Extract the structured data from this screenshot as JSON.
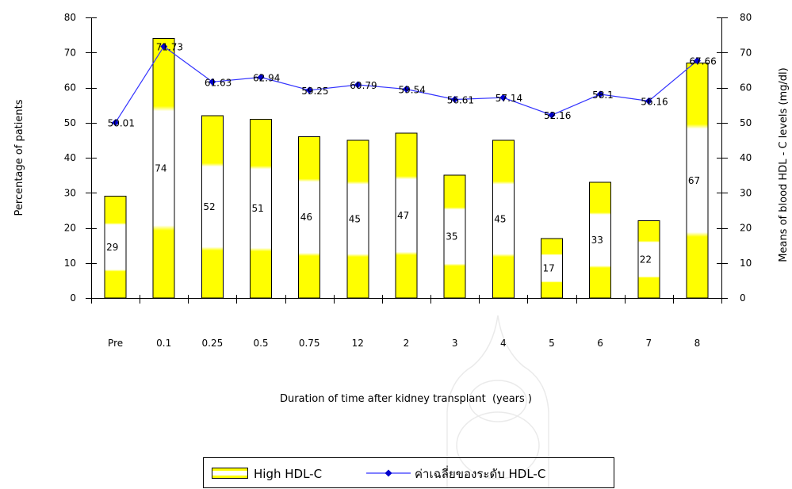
{
  "chart_data": {
    "type": "bar",
    "categories": [
      "Pre",
      "0.1",
      "0.25",
      "0.5",
      "0.75",
      "12",
      "2",
      "3",
      "4",
      "5",
      "6",
      "7",
      "8"
    ],
    "series": [
      {
        "name": "High HDL-C",
        "type": "bar",
        "secondary_y": false,
        "values": [
          29,
          74,
          52,
          51,
          46,
          45,
          47,
          35,
          45,
          17,
          33,
          22,
          67
        ],
        "color": "#ffff00"
      },
      {
        "name": "ค่าเฉลี่ยของระดับ HDL-C",
        "type": "line",
        "secondary_y": true,
        "values": [
          50.01,
          71.73,
          61.63,
          62.94,
          59.25,
          60.79,
          59.54,
          56.61,
          57.14,
          52.16,
          58.1,
          56.16,
          67.66
        ],
        "color": "#3333ff",
        "marker": "diamond",
        "marker_color": "#0000cc"
      }
    ],
    "xlabel": "Duration of time after kidney transplant  (years )",
    "ylabel": "Percentage of patients",
    "y2label": "Means of blood HDL - C levels (mg/dl)",
    "ylim": [
      0,
      80
    ],
    "y2lim": [
      0,
      80
    ],
    "yticks": [
      0,
      10,
      20,
      30,
      40,
      50,
      60,
      70,
      80
    ],
    "y2ticks": [
      0,
      10,
      20,
      30,
      40,
      50,
      60,
      70,
      80
    ],
    "data_labels": true,
    "grid": false,
    "legend": "bottom"
  }
}
